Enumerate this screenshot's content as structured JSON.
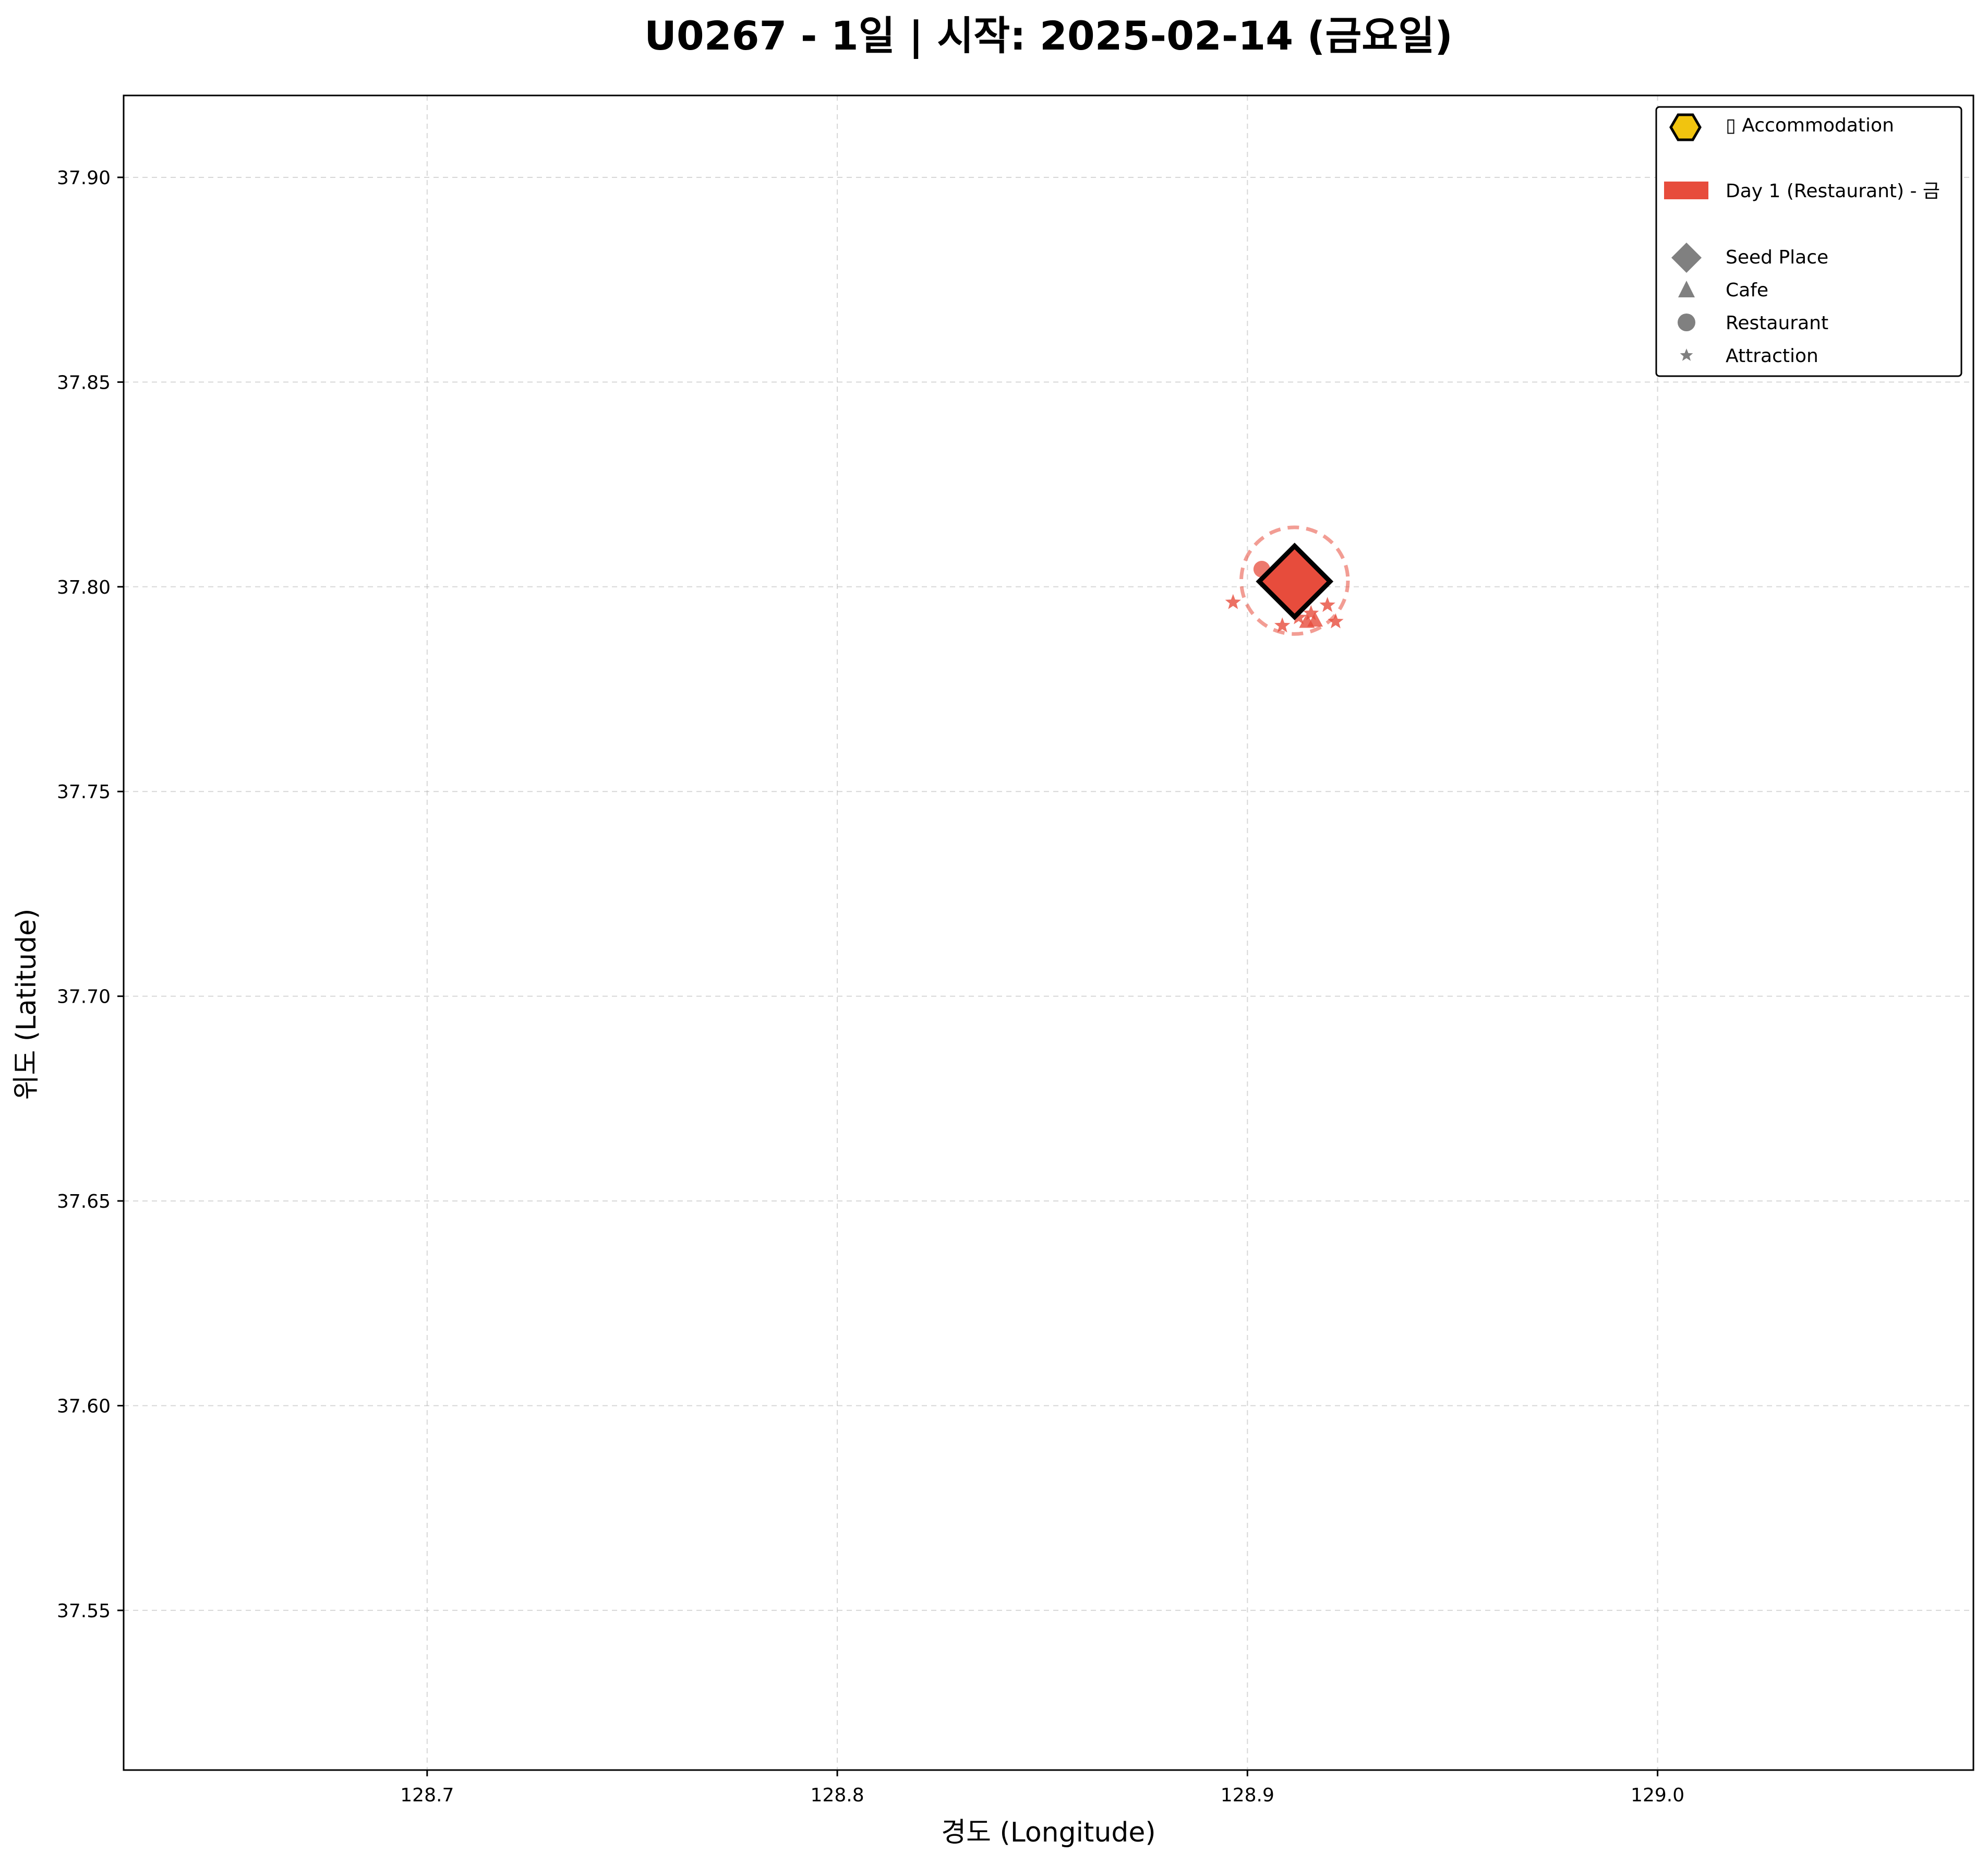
{
  "chart_data": {
    "type": "scatter",
    "title": "U0267 - 1일 | 시작: 2025-02-14 (금요일)",
    "xlabel": "경도 (Longitude)",
    "ylabel": "위도 (Latitude)",
    "xlim": [
      128.626,
      129.077
    ],
    "ylim": [
      37.511,
      37.92
    ],
    "x_ticks": [
      128.7,
      128.8,
      128.9,
      129.0
    ],
    "x_tick_labels": [
      "128.7",
      "128.8",
      "128.9",
      "129.0"
    ],
    "y_ticks": [
      37.55,
      37.6,
      37.65,
      37.7,
      37.75,
      37.8,
      37.85,
      37.9
    ],
    "y_tick_labels": [
      "37.55",
      "37.60",
      "37.65",
      "37.70",
      "37.75",
      "37.80",
      "37.85",
      "37.90"
    ],
    "grid": true,
    "legend_position": "top-right",
    "day_color": "#e74c3c",
    "legend": [
      {
        "kind": "hexagon",
        "label": "▯ Accommodation",
        "color": "#f1c40f"
      },
      {
        "kind": "patch",
        "label": "Day 1 (Restaurant) - 금",
        "color": "#e74c3c"
      },
      {
        "kind": "diamond",
        "label": "Seed Place",
        "color": "#808080"
      },
      {
        "kind": "triangle",
        "label": "Cafe",
        "color": "#808080"
      },
      {
        "kind": "circle",
        "label": "Restaurant",
        "color": "#808080"
      },
      {
        "kind": "star",
        "label": "Attraction",
        "color": "#808080"
      }
    ],
    "seed_place": {
      "x": 128.9115,
      "y": 37.8013,
      "category": "Restaurant"
    },
    "day_radius_circle": {
      "x": 128.9115,
      "y": 37.8015,
      "radius": 0.013
    },
    "points": [
      {
        "x": 128.9035,
        "y": 37.8043,
        "category": "Restaurant"
      },
      {
        "x": 128.8965,
        "y": 37.7962,
        "category": "Attraction"
      },
      {
        "x": 128.9085,
        "y": 37.7905,
        "category": "Attraction"
      },
      {
        "x": 128.9195,
        "y": 37.7955,
        "category": "Attraction"
      },
      {
        "x": 128.9215,
        "y": 37.7915,
        "category": "Attraction"
      },
      {
        "x": 128.9155,
        "y": 37.7935,
        "category": "Attraction"
      },
      {
        "x": 128.9145,
        "y": 37.7915,
        "category": "Cafe"
      },
      {
        "x": 128.9165,
        "y": 37.7918,
        "category": "Cafe"
      },
      {
        "x": 128.9125,
        "y": 37.7925,
        "category": "Attraction"
      },
      {
        "x": 128.9095,
        "y": 37.8035,
        "category": "Restaurant"
      }
    ]
  }
}
